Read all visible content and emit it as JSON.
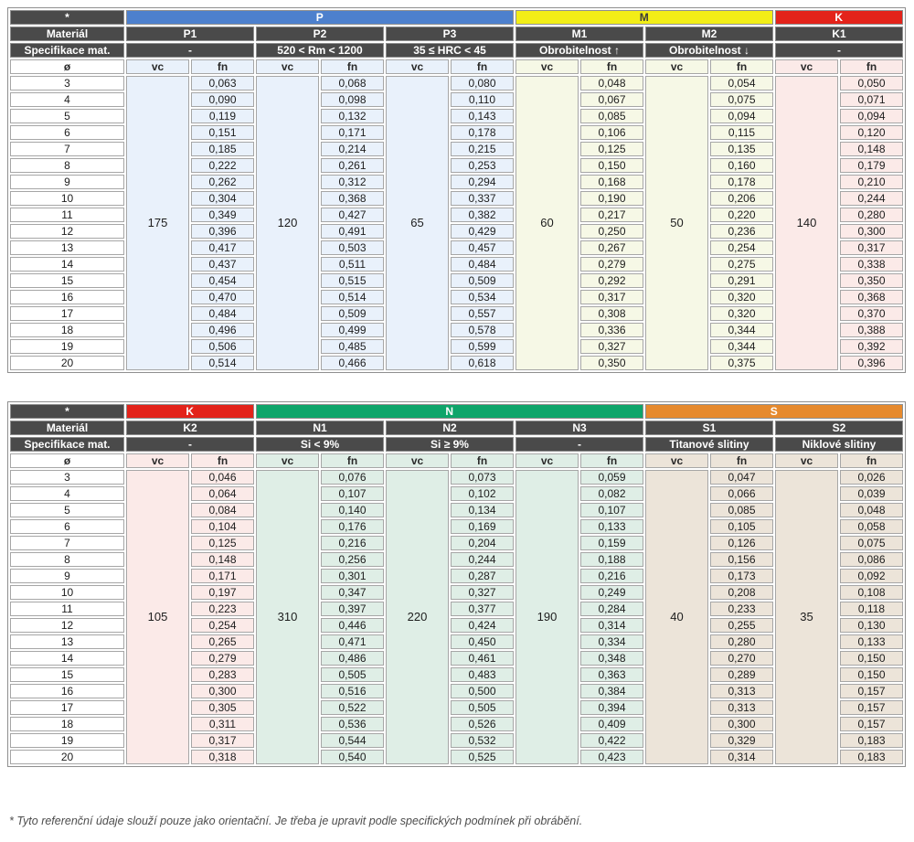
{
  "labels": {
    "star": "*",
    "material": "Materiál",
    "spec": "Specifikace mat.",
    "diameter": "ø",
    "vc": "vc",
    "fn": "fn"
  },
  "diameters": [
    3,
    4,
    5,
    6,
    7,
    8,
    9,
    10,
    11,
    12,
    13,
    14,
    15,
    16,
    17,
    18,
    19,
    20
  ],
  "tables": [
    {
      "groups": [
        {
          "name": "P",
          "color": "#4d80cd",
          "text_color": "#ffffff",
          "tint": "#e9f1fb",
          "columns": [
            {
              "material": "P1",
              "spec": "-",
              "vc": "175",
              "fn": [
                "0,063",
                "0,090",
                "0,119",
                "0,151",
                "0,185",
                "0,222",
                "0,262",
                "0,304",
                "0,349",
                "0,396",
                "0,417",
                "0,437",
                "0,454",
                "0,470",
                "0,484",
                "0,496",
                "0,506",
                "0,514"
              ]
            },
            {
              "material": "P2",
              "spec": "520 < Rm < 1200",
              "vc": "120",
              "fn": [
                "0,068",
                "0,098",
                "0,132",
                "0,171",
                "0,214",
                "0,261",
                "0,312",
                "0,368",
                "0,427",
                "0,491",
                "0,503",
                "0,511",
                "0,515",
                "0,514",
                "0,509",
                "0,499",
                "0,485",
                "0,466"
              ]
            },
            {
              "material": "P3",
              "spec": "35 ≤ HRC < 45",
              "vc": "65",
              "fn": [
                "0,080",
                "0,110",
                "0,143",
                "0,178",
                "0,215",
                "0,253",
                "0,294",
                "0,337",
                "0,382",
                "0,429",
                "0,457",
                "0,484",
                "0,509",
                "0,534",
                "0,557",
                "0,578",
                "0,599",
                "0,618"
              ]
            }
          ]
        },
        {
          "name": "M",
          "color": "#f2ee17",
          "text_color": "#3c3c3c",
          "tint": "#f6f8e6",
          "columns": [
            {
              "material": "M1",
              "spec": "Obrobitelnost ↑",
              "vc": "60",
              "fn": [
                "0,048",
                "0,067",
                "0,085",
                "0,106",
                "0,125",
                "0,150",
                "0,168",
                "0,190",
                "0,217",
                "0,250",
                "0,267",
                "0,279",
                "0,292",
                "0,317",
                "0,308",
                "0,336",
                "0,327",
                "0,350"
              ]
            },
            {
              "material": "M2",
              "spec": "Obrobitelnost ↓",
              "vc": "50",
              "fn": [
                "0,054",
                "0,075",
                "0,094",
                "0,115",
                "0,135",
                "0,160",
                "0,178",
                "0,206",
                "0,220",
                "0,236",
                "0,254",
                "0,275",
                "0,291",
                "0,320",
                "0,320",
                "0,344",
                "0,344",
                "0,375"
              ]
            }
          ]
        },
        {
          "name": "K",
          "color": "#e3231a",
          "text_color": "#ffffff",
          "tint": "#fbeae8",
          "columns": [
            {
              "material": "K1",
              "spec": "-",
              "vc": "140",
              "fn": [
                "0,050",
                "0,071",
                "0,094",
                "0,120",
                "0,148",
                "0,179",
                "0,210",
                "0,244",
                "0,280",
                "0,300",
                "0,317",
                "0,338",
                "0,350",
                "0,368",
                "0,370",
                "0,388",
                "0,392",
                "0,396"
              ]
            }
          ]
        }
      ]
    },
    {
      "groups": [
        {
          "name": "K",
          "color": "#e3231a",
          "text_color": "#ffffff",
          "tint": "#fbeae8",
          "columns": [
            {
              "material": "K2",
              "spec": "-",
              "vc": "105",
              "fn": [
                "0,046",
                "0,064",
                "0,084",
                "0,104",
                "0,125",
                "0,148",
                "0,171",
                "0,197",
                "0,223",
                "0,254",
                "0,265",
                "0,279",
                "0,283",
                "0,300",
                "0,305",
                "0,311",
                "0,317",
                "0,318"
              ]
            }
          ]
        },
        {
          "name": "N",
          "color": "#0ea56a",
          "text_color": "#ffffff",
          "tint": "#dfeee6",
          "columns": [
            {
              "material": "N1",
              "spec": "Si < 9%",
              "vc": "310",
              "fn": [
                "0,076",
                "0,107",
                "0,140",
                "0,176",
                "0,216",
                "0,256",
                "0,301",
                "0,347",
                "0,397",
                "0,446",
                "0,471",
                "0,486",
                "0,505",
                "0,516",
                "0,522",
                "0,536",
                "0,544",
                "0,540"
              ]
            },
            {
              "material": "N2",
              "spec": "Si ≥ 9%",
              "vc": "220",
              "fn": [
                "0,073",
                "0,102",
                "0,134",
                "0,169",
                "0,204",
                "0,244",
                "0,287",
                "0,327",
                "0,377",
                "0,424",
                "0,450",
                "0,461",
                "0,483",
                "0,500",
                "0,505",
                "0,526",
                "0,532",
                "0,525"
              ]
            },
            {
              "material": "N3",
              "spec": "-",
              "vc": "190",
              "fn": [
                "0,059",
                "0,082",
                "0,107",
                "0,133",
                "0,159",
                "0,188",
                "0,216",
                "0,249",
                "0,284",
                "0,314",
                "0,334",
                "0,348",
                "0,363",
                "0,384",
                "0,394",
                "0,409",
                "0,422",
                "0,423"
              ]
            }
          ]
        },
        {
          "name": "S",
          "color": "#e68a2e",
          "text_color": "#ffffff",
          "tint": "#ece4d9",
          "columns": [
            {
              "material": "S1",
              "spec": "Titanové slitiny",
              "vc": "40",
              "fn": [
                "0,047",
                "0,066",
                "0,085",
                "0,105",
                "0,126",
                "0,156",
                "0,173",
                "0,208",
                "0,233",
                "0,255",
                "0,280",
                "0,270",
                "0,289",
                "0,313",
                "0,313",
                "0,300",
                "0,329",
                "0,314"
              ]
            },
            {
              "material": "S2",
              "spec": "Niklové slitiny",
              "vc": "35",
              "fn": [
                "0,026",
                "0,039",
                "0,048",
                "0,058",
                "0,075",
                "0,086",
                "0,092",
                "0,108",
                "0,118",
                "0,130",
                "0,133",
                "0,150",
                "0,150",
                "0,157",
                "0,157",
                "0,157",
                "0,183",
                "0,183"
              ]
            }
          ]
        }
      ]
    }
  ],
  "footnote": "* Tyto referenční údaje slouží pouze jako orientační. Je třeba je upravit podle specifických podmínek při obrábění."
}
